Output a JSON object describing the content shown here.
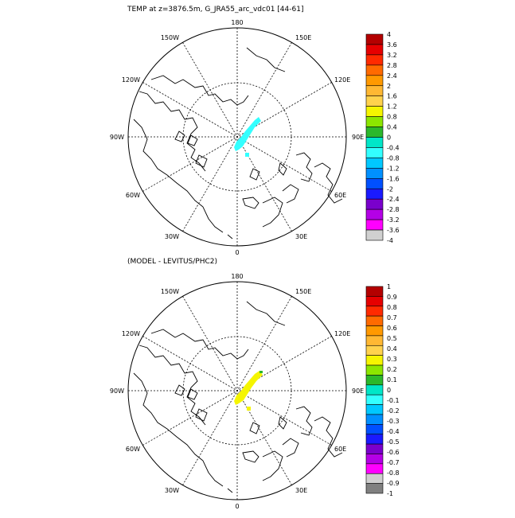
{
  "panels": [
    {
      "title": "TEMP at z=3876.5m, G_JRA55_arc_vdc01 [44-61]",
      "lon_labels": [
        "180",
        "150E",
        "120E",
        "90E",
        "60E",
        "30E",
        "0",
        "30W",
        "60W",
        "90W",
        "120W",
        "150W"
      ],
      "colorbar": {
        "labels": [
          "4",
          "3.6",
          "3.2",
          "2.8",
          "2.4",
          "2",
          "1.6",
          "1.2",
          "0.8",
          "0.4",
          "0",
          "-0.4",
          "-0.8",
          "-1.2",
          "-1.6",
          "-2",
          "-2.4",
          "-2.8",
          "-3.2",
          "-3.6",
          "-4"
        ],
        "colors": [
          "#b40000",
          "#e60000",
          "#ff2a00",
          "#ff6a00",
          "#ff9900",
          "#ffb833",
          "#ffd24d",
          "#f5f500",
          "#8ce600",
          "#2bb82b",
          "#00e6c8",
          "#33ffff",
          "#00c8ff",
          "#0090ff",
          "#0050ff",
          "#1a1aff",
          "#7a00cc",
          "#b400e6",
          "#ff00ff",
          "#d0d0d0"
        ]
      },
      "anomaly_color": "#33ffff"
    },
    {
      "title": "(MODEL - LEVITUS/PHC2)",
      "lon_labels": [
        "180",
        "150E",
        "120E",
        "90E",
        "60E",
        "30E",
        "0",
        "30W",
        "60W",
        "90W",
        "120W",
        "150W"
      ],
      "colorbar": {
        "labels": [
          "1",
          "0.9",
          "0.8",
          "0.7",
          "0.6",
          "0.5",
          "0.4",
          "0.3",
          "0.2",
          "0.1",
          "0",
          "-0.1",
          "-0.2",
          "-0.3",
          "-0.4",
          "-0.5",
          "-0.6",
          "-0.7",
          "-0.8",
          "-0.9",
          "-1"
        ],
        "colors": [
          "#b40000",
          "#e60000",
          "#ff2a00",
          "#ff6a00",
          "#ff9900",
          "#ffb833",
          "#ffd24d",
          "#f5f500",
          "#8ce600",
          "#2bb82b",
          "#00e6c8",
          "#33ffff",
          "#00c8ff",
          "#0090ff",
          "#0050ff",
          "#1a1aff",
          "#7a00cc",
          "#b400e6",
          "#ff00ff",
          "#d0d0d0",
          "#808080"
        ]
      },
      "anomaly_color": "#f5f500"
    }
  ]
}
